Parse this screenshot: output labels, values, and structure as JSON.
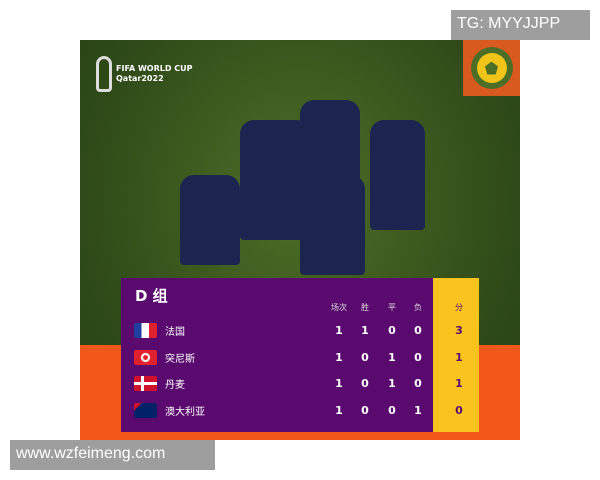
{
  "watermark_top": "TG: MYYJJPP",
  "watermark_bottom": "www.wzfeimeng.com",
  "logo": {
    "line1": "FIFA WORLD CUP",
    "line2": "Qatar2022"
  },
  "table": {
    "title": "D 组",
    "headers": [
      "场次",
      "胜",
      "平",
      "负",
      "分"
    ],
    "rows": [
      {
        "team": "法国",
        "flag": "france-flag",
        "played": "1",
        "won": "1",
        "drawn": "0",
        "lost": "0",
        "points": "3"
      },
      {
        "team": "突尼斯",
        "flag": "tunisia-flag",
        "played": "1",
        "won": "0",
        "drawn": "1",
        "lost": "0",
        "points": "1"
      },
      {
        "team": "丹麦",
        "flag": "denmark-flag",
        "played": "1",
        "won": "0",
        "drawn": "1",
        "lost": "0",
        "points": "1"
      },
      {
        "team": "澳大利亚",
        "flag": "australia-flag",
        "played": "1",
        "won": "0",
        "drawn": "0",
        "lost": "1",
        "points": "0"
      }
    ]
  },
  "colors": {
    "panel": "#5a0a6e",
    "points_column": "#f7c31c",
    "band": "#f2581a"
  }
}
